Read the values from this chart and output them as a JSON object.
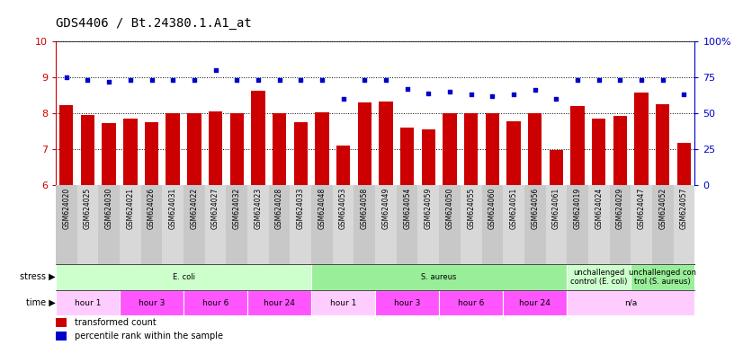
{
  "title": "GDS4406 / Bt.24380.1.A1_at",
  "samples": [
    "GSM624020",
    "GSM624025",
    "GSM624030",
    "GSM624021",
    "GSM624026",
    "GSM624031",
    "GSM624022",
    "GSM624027",
    "GSM624032",
    "GSM624023",
    "GSM624028",
    "GSM624033",
    "GSM624048",
    "GSM624053",
    "GSM624058",
    "GSM624049",
    "GSM624054",
    "GSM624059",
    "GSM624050",
    "GSM624055",
    "GSM624060",
    "GSM624051",
    "GSM624056",
    "GSM624061",
    "GSM624019",
    "GSM624024",
    "GSM624029",
    "GSM624047",
    "GSM624052",
    "GSM624057"
  ],
  "bar_values": [
    8.22,
    7.95,
    7.72,
    7.86,
    7.75,
    8.0,
    8.0,
    8.05,
    8.0,
    8.63,
    8.0,
    7.75,
    8.02,
    7.1,
    8.31,
    8.32,
    7.6,
    7.55,
    8.0,
    8.0,
    8.0,
    7.77,
    8.0,
    6.97,
    8.2,
    7.85,
    7.92,
    8.58,
    8.26,
    7.18
  ],
  "percentile_values": [
    75,
    73,
    72,
    73,
    73,
    73,
    73,
    80,
    73,
    73,
    73,
    73,
    73,
    60,
    73,
    73,
    67,
    64,
    65,
    63,
    62,
    63,
    66,
    60,
    73,
    73,
    73,
    73,
    73,
    63
  ],
  "ylim_left": [
    6,
    10
  ],
  "ylim_right": [
    0,
    100
  ],
  "yticks_left": [
    6,
    7,
    8,
    9,
    10
  ],
  "yticks_right": [
    0,
    25,
    50,
    75,
    100
  ],
  "bar_color": "#cc0000",
  "dot_color": "#0000cc",
  "stress_row": [
    {
      "label": "E. coli",
      "start": 0,
      "end": 12,
      "color": "#ccffcc"
    },
    {
      "label": "S. aureus",
      "start": 12,
      "end": 24,
      "color": "#99ee99"
    },
    {
      "label": "unchallenged\ncontrol (E. coli)",
      "start": 24,
      "end": 27,
      "color": "#ccffcc"
    },
    {
      "label": "unchallenged con\ntrol (S. aureus)",
      "start": 27,
      "end": 30,
      "color": "#99ee99"
    }
  ],
  "time_row": [
    {
      "label": "hour 1",
      "start": 0,
      "end": 3,
      "color": "#ffccff"
    },
    {
      "label": "hour 3",
      "start": 3,
      "end": 6,
      "color": "#ff55ff"
    },
    {
      "label": "hour 6",
      "start": 6,
      "end": 9,
      "color": "#ff55ff"
    },
    {
      "label": "hour 24",
      "start": 9,
      "end": 12,
      "color": "#ff55ff"
    },
    {
      "label": "hour 1",
      "start": 12,
      "end": 15,
      "color": "#ffccff"
    },
    {
      "label": "hour 3",
      "start": 15,
      "end": 18,
      "color": "#ff55ff"
    },
    {
      "label": "hour 6",
      "start": 18,
      "end": 21,
      "color": "#ff55ff"
    },
    {
      "label": "hour 24",
      "start": 21,
      "end": 24,
      "color": "#ff55ff"
    },
    {
      "label": "n/a",
      "start": 24,
      "end": 30,
      "color": "#ffccff"
    }
  ],
  "bar_color_left": "#cc0000",
  "dot_color_blue": "#0000cc",
  "title_fontsize": 10,
  "tick_fontsize": 8,
  "sample_fontsize": 5.5,
  "annot_fontsize": 7
}
